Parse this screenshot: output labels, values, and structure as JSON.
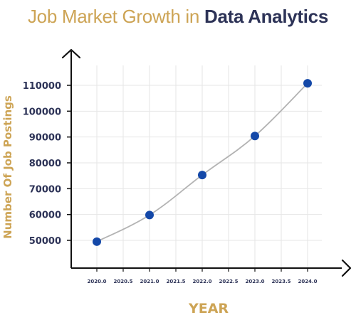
{
  "title": {
    "part1": "Job Market Growth in ",
    "part2": "Data Analytics"
  },
  "colors": {
    "title_gold": "#cda455",
    "title_navy": "#2d3357",
    "tick_text": "#2d3357",
    "axis_label": "#cda455",
    "line": "#b3b3b3",
    "marker": "#1448a8",
    "grid": "#e6e6e6",
    "axis": "#111111"
  },
  "chart_data": {
    "type": "line",
    "title": "Job Market Growth in Data Analytics",
    "xlabel": "YEAR",
    "ylabel": "Number Of Job Postings",
    "x": [
      2020,
      2021,
      2022,
      2023,
      2024
    ],
    "series": [
      {
        "values": [
          49500,
          59800,
          75300,
          90400,
          110800
        ]
      }
    ],
    "xticks": [
      "2020.0",
      "2020.5",
      "2021.0",
      "2021.5",
      "2022.0",
      "2022.5",
      "2023.0",
      "2023.5",
      "2024.0"
    ],
    "yticks": [
      "50000",
      "60000",
      "70000",
      "80000",
      "90000",
      "100000",
      "110000"
    ],
    "xlim": [
      2019.5,
      2024.15
    ],
    "ylim": [
      39000,
      115000
    ],
    "grid": true,
    "axis_arrows": true,
    "marker": "circle",
    "line_style": "smooth"
  }
}
